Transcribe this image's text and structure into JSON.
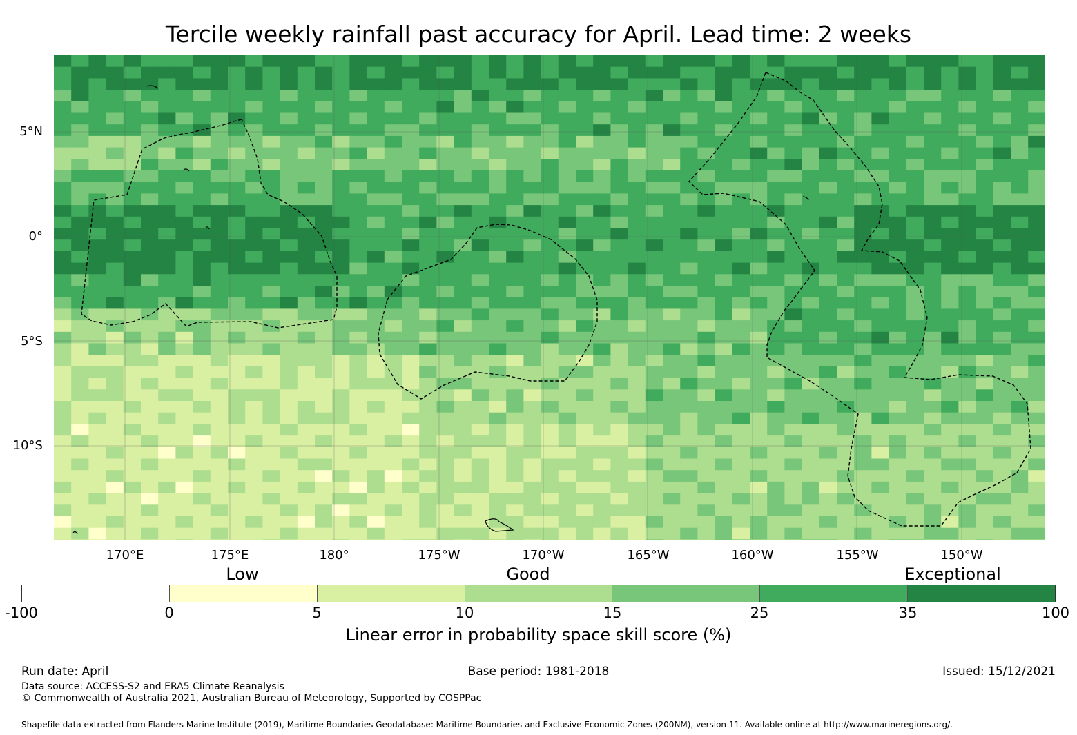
{
  "title": "Tercile weekly rainfall past accuracy for April. Lead time: 2 weeks",
  "map": {
    "lat_labels": [
      "5°N",
      "0°",
      "5°S",
      "10°S"
    ],
    "lon_labels": [
      "170°E",
      "175°E",
      "180°",
      "175°W",
      "170°W",
      "165°W",
      "160°W",
      "155°W",
      "150°W"
    ],
    "colors": [
      "#ffffcc",
      "#d9f0a3",
      "#addd8e",
      "#78c679",
      "#41ab5d",
      "#238443"
    ]
  },
  "legend": {
    "category_labels": [
      "Low",
      "Good",
      "Exceptional"
    ],
    "tick_labels": [
      "-100",
      "0",
      "5",
      "10",
      "15",
      "25",
      "35",
      "100"
    ],
    "segment_colors": [
      "#ffffff",
      "#ffffcc",
      "#d9f0a3",
      "#addd8e",
      "#78c679",
      "#41ab5d",
      "#238443"
    ],
    "title": "Linear error in probability space skill score (%)"
  },
  "footer": {
    "run_date": "Run date: April",
    "base_period": "Base period: 1981-2018",
    "issued": "Issued: 15/12/2021",
    "data_source": "Data source: ACCESS-S2 and ERA5 Climate Reanalysis",
    "copyright": "© Commonwealth of Australia 2021, Australian Bureau of Meteorology, Supported by COSPPac",
    "shapefile_note": "Shapefile data extracted from Flanders Marine Institute (2019), Maritime Boundaries Geodatabase: Maritime Boundaries and Exclusive Economic Zones (200NM), version 11. Available online at http://www.marineregions.org/."
  }
}
